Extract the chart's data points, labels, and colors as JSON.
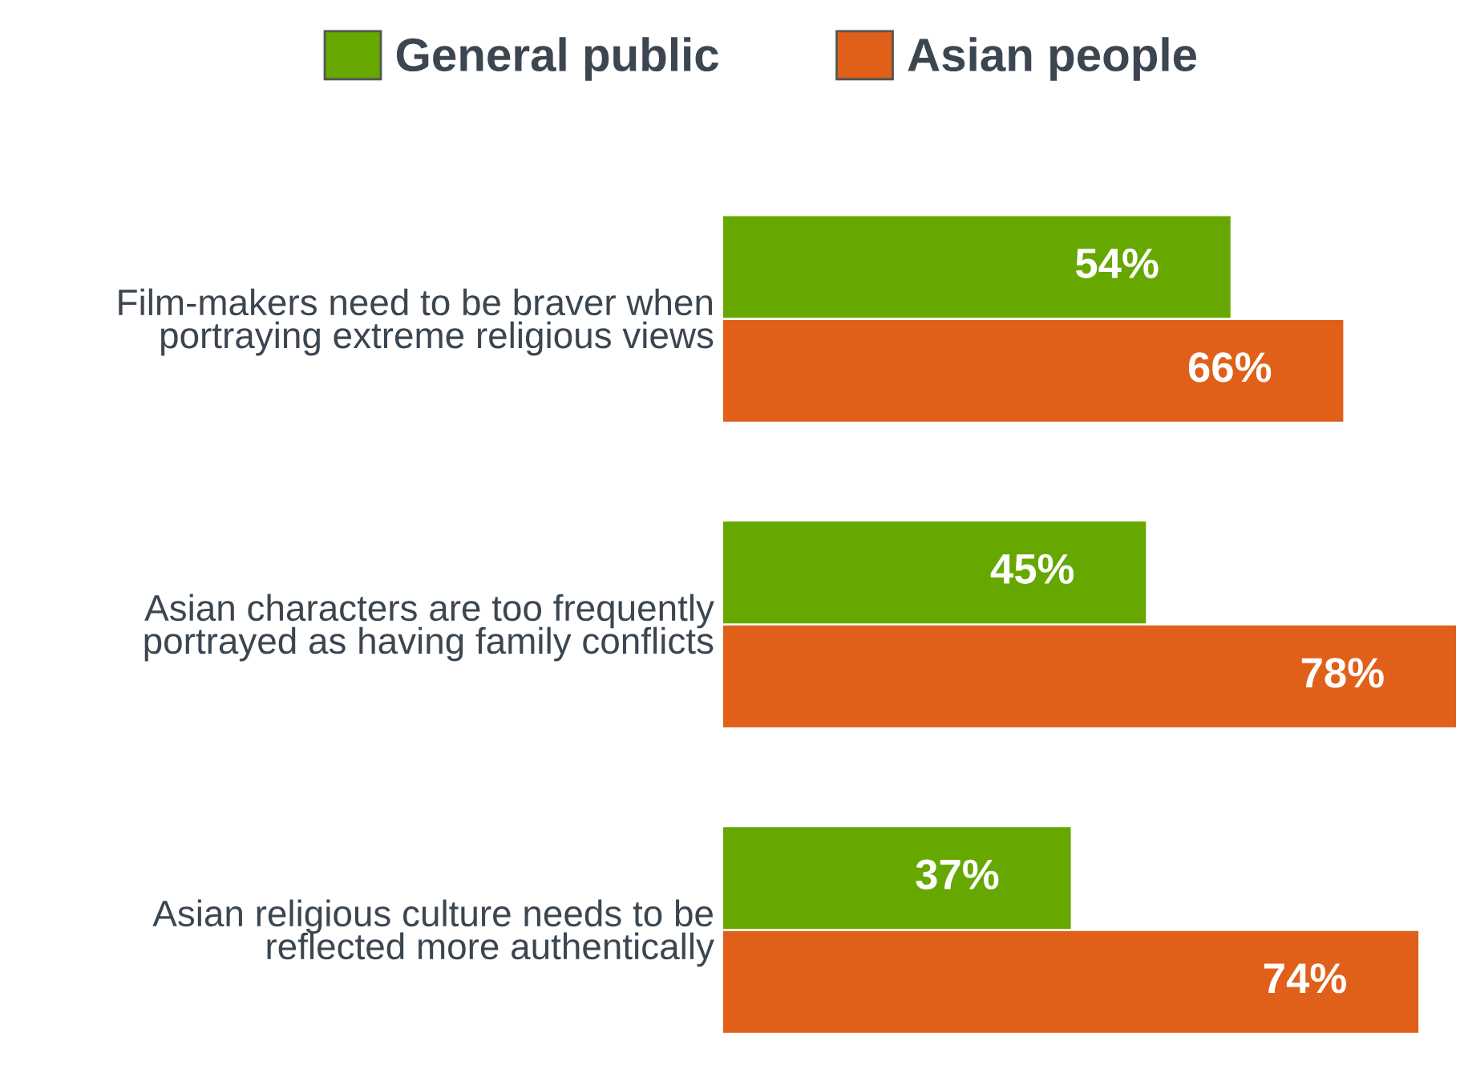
{
  "chart_data": {
    "type": "bar",
    "orientation": "horizontal",
    "categories": [
      "Film-makers need to be braver when\nportraying extreme religious views",
      "Asian characters are too frequently\nportrayed as having family conflicts",
      "Asian religious culture needs to be\nreflected more authentically"
    ],
    "series": [
      {
        "name": "General public",
        "color": "#66a800",
        "values": [
          54,
          45,
          37
        ],
        "value_labels": [
          "54%",
          "45%",
          "37%"
        ]
      },
      {
        "name": "Asian people",
        "color": "#e0601a",
        "values": [
          66,
          78,
          74
        ],
        "value_labels": [
          "66%",
          "78%",
          "74%"
        ]
      }
    ],
    "legend": "top"
  }
}
